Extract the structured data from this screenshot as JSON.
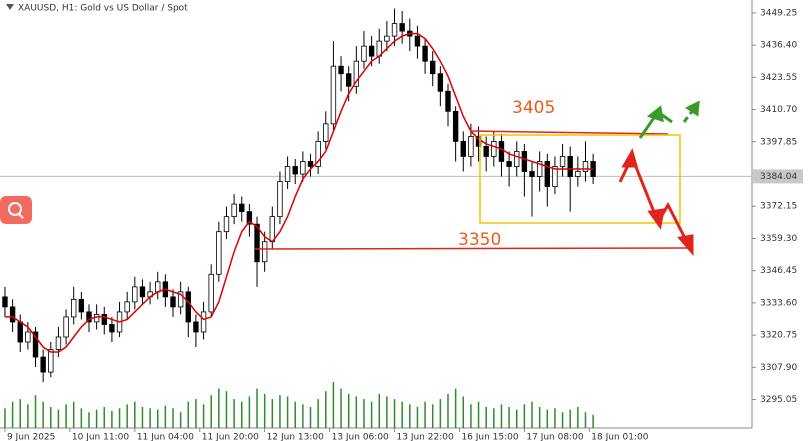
{
  "chart_data": {
    "type": "candlestick",
    "title": "XAUUSD, H1:  Gold vs US Dollar / Spot",
    "open": [
      3336,
      3332,
      3326,
      3318,
      3322,
      3312,
      3306,
      3315,
      3320,
      3328,
      3335,
      3330,
      3326,
      3329,
      3325,
      3322,
      3330,
      3334,
      3340,
      3336,
      3338,
      3342,
      3336,
      3332,
      3338,
      3326,
      3322,
      3330,
      3345,
      3362,
      3368,
      3373,
      3370,
      3365,
      3350,
      3358,
      3368,
      3382,
      3388,
      3385,
      3390,
      3388,
      3398,
      3405,
      3428,
      3425,
      3420,
      3430,
      3436,
      3432,
      3438,
      3440,
      3445,
      3442,
      3440,
      3436,
      3430,
      3425,
      3418,
      3410,
      3398,
      3392,
      3400,
      3396,
      3392,
      3398,
      3390,
      3388,
      3394,
      3386,
      3384,
      3390,
      3380,
      3388,
      3392,
      3384,
      3386,
      3390
    ],
    "high": [
      3340,
      3335,
      3329,
      3326,
      3324,
      3315,
      3318,
      3324,
      3331,
      3340,
      3338,
      3333,
      3333,
      3332,
      3328,
      3334,
      3338,
      3344,
      3343,
      3342,
      3346,
      3345,
      3339,
      3342,
      3340,
      3329,
      3334,
      3349,
      3366,
      3372,
      3377,
      3376,
      3373,
      3368,
      3362,
      3372,
      3386,
      3392,
      3391,
      3394,
      3393,
      3402,
      3410,
      3438,
      3432,
      3428,
      3436,
      3442,
      3440,
      3443,
      3446,
      3451,
      3450,
      3447,
      3444,
      3439,
      3434,
      3428,
      3421,
      3412,
      3402,
      3405,
      3404,
      3400,
      3402,
      3401,
      3394,
      3398,
      3397,
      3390,
      3394,
      3393,
      3392,
      3397,
      3396,
      3392,
      3398,
      3393
    ],
    "low": [
      3328,
      3322,
      3314,
      3315,
      3308,
      3302,
      3304,
      3312,
      3317,
      3325,
      3327,
      3322,
      3323,
      3321,
      3318,
      3320,
      3327,
      3331,
      3333,
      3333,
      3335,
      3332,
      3328,
      3329,
      3320,
      3316,
      3319,
      3328,
      3342,
      3359,
      3365,
      3366,
      3360,
      3340,
      3346,
      3355,
      3365,
      3379,
      3381,
      3382,
      3384,
      3385,
      3395,
      3402,
      3418,
      3414,
      3417,
      3427,
      3428,
      3429,
      3434,
      3436,
      3437,
      3434,
      3431,
      3425,
      3420,
      3412,
      3404,
      3390,
      3386,
      3388,
      3390,
      3386,
      3388,
      3384,
      3380,
      3384,
      3376,
      3368,
      3378,
      3372,
      3377,
      3384,
      3370,
      3380,
      3382,
      3381
    ],
    "close": [
      3332,
      3326,
      3318,
      3322,
      3312,
      3306,
      3315,
      3320,
      3328,
      3335,
      3330,
      3326,
      3329,
      3325,
      3322,
      3330,
      3334,
      3340,
      3336,
      3338,
      3342,
      3336,
      3332,
      3338,
      3326,
      3322,
      3330,
      3345,
      3362,
      3368,
      3373,
      3370,
      3365,
      3350,
      3358,
      3368,
      3382,
      3388,
      3385,
      3390,
      3388,
      3398,
      3405,
      3428,
      3425,
      3420,
      3430,
      3436,
      3432,
      3438,
      3440,
      3445,
      3442,
      3440,
      3436,
      3430,
      3425,
      3418,
      3410,
      3398,
      3392,
      3400,
      3396,
      3392,
      3398,
      3390,
      3388,
      3394,
      3386,
      3384,
      3390,
      3380,
      3388,
      3392,
      3384,
      3386,
      3390,
      3384
    ],
    "ma": {
      "color": "#e00000",
      "values": [
        3328,
        3328,
        3326,
        3324,
        3320,
        3316,
        3314,
        3314,
        3316,
        3320,
        3324,
        3327,
        3328,
        3328,
        3327,
        3326,
        3327,
        3330,
        3333,
        3336,
        3338,
        3339,
        3338,
        3337,
        3334,
        3330,
        3327,
        3328,
        3334,
        3344,
        3354,
        3362,
        3366,
        3364,
        3360,
        3358,
        3362,
        3368,
        3376,
        3383,
        3387,
        3390,
        3394,
        3402,
        3410,
        3417,
        3422,
        3426,
        3430,
        3432,
        3435,
        3438,
        3440,
        3441,
        3441,
        3439,
        3435,
        3430,
        3424,
        3416,
        3408,
        3402,
        3399,
        3397,
        3396,
        3395,
        3393,
        3392,
        3391,
        3390,
        3389,
        3388,
        3387,
        3387,
        3387,
        3387,
        3387,
        3387
      ]
    },
    "volume": {
      "color": "#2e8b2e",
      "values": [
        15,
        20,
        22,
        18,
        25,
        20,
        16,
        14,
        18,
        20,
        15,
        12,
        14,
        16,
        13,
        15,
        18,
        20,
        16,
        15,
        14,
        17,
        15,
        12,
        20,
        22,
        18,
        25,
        30,
        28,
        22,
        20,
        24,
        30,
        26,
        22,
        25,
        24,
        20,
        18,
        16,
        22,
        28,
        35,
        30,
        26,
        24,
        22,
        20,
        26,
        24,
        22,
        20,
        18,
        16,
        20,
        18,
        22,
        26,
        30,
        24,
        18,
        20,
        16,
        15,
        18,
        16,
        14,
        18,
        20,
        16,
        14,
        15,
        12,
        14,
        16,
        12,
        10
      ]
    },
    "up_color": "#ffffff",
    "down_color": "#000000",
    "xlim": [
      -0.65,
      97.8
    ],
    "ylim": [
      3283.7,
      3454.4
    ],
    "xticks": [
      {
        "value": 0,
        "label": "9 Jun 2025"
      },
      {
        "value": 8.5,
        "label": "10 Jun 11:00"
      },
      {
        "value": 17,
        "label": "11 Jun 04:00"
      },
      {
        "value": 25.5,
        "label": "11 Jun 20:00"
      },
      {
        "value": 34,
        "label": "12 Jun 13:00"
      },
      {
        "value": 42.5,
        "label": "13 Jun 06:00"
      },
      {
        "value": 51,
        "label": "13 Jun 22:00"
      },
      {
        "value": 59.5,
        "label": "16 Jun 15:00"
      },
      {
        "value": 68,
        "label": "17 Jun 08:00"
      },
      {
        "value": 76.5,
        "label": "18 Jun 01:00"
      }
    ],
    "yticks": [
      {
        "value": 3449.25,
        "label": "3449.25"
      },
      {
        "value": 3436.4,
        "label": "3436.40"
      },
      {
        "value": 3423.55,
        "label": "3423.55"
      },
      {
        "value": 3410.7,
        "label": "3410.70"
      },
      {
        "value": 3397.85,
        "label": "3397.85"
      },
      {
        "value": 3372.15,
        "label": "3372.15"
      },
      {
        "value": 3359.3,
        "label": "3359.30"
      },
      {
        "value": 3346.45,
        "label": "3346.45"
      },
      {
        "value": 3333.6,
        "label": "3333.60"
      },
      {
        "value": 3320.75,
        "label": "3320.75"
      },
      {
        "value": 3307.9,
        "label": "3307.90"
      },
      {
        "value": 3295.05,
        "label": "3295.05"
      }
    ],
    "current_price": {
      "value": 3384.04,
      "label": "3384.04"
    },
    "annotations": [
      "3405",
      "3350"
    ]
  }
}
